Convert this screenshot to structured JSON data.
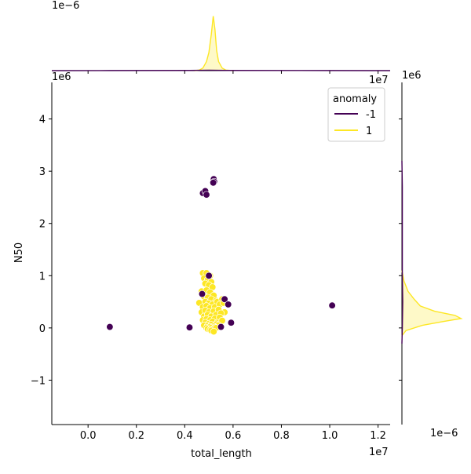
{
  "chart_data": {
    "type": "scatter",
    "subtype": "jointplot",
    "title": "",
    "xlabel": "total_length",
    "ylabel": "N50",
    "x_offset_label": "1e7",
    "y_offset_label": "1e6",
    "xlim": [
      -1.5,
      12.5
    ],
    "ylim": [
      -1.85,
      4.7
    ],
    "x_ticks": [
      0.0,
      0.2,
      0.4,
      0.6,
      0.8,
      1.0,
      1.2
    ],
    "x_tick_labels": [
      "0.0",
      "0.2",
      "0.4",
      "0.6",
      "0.8",
      "1.0",
      "1.2"
    ],
    "y_ticks": [
      -1,
      0,
      1,
      2,
      3,
      4
    ],
    "y_tick_labels": [
      "−1",
      "0",
      "1",
      "2",
      "3",
      "4"
    ],
    "grid": false,
    "legend": {
      "title": "anomaly",
      "placement": "top-right",
      "entries": [
        {
          "label": "-1",
          "color": "#440154"
        },
        {
          "label": "1",
          "color": "#fde725"
        }
      ]
    },
    "series": [
      {
        "name": "-1",
        "color": "#440154",
        "x": [
          0.9,
          4.2,
          4.75,
          4.85,
          4.9,
          5.2,
          5.22,
          5.18,
          5.0,
          4.72,
          5.65,
          5.8,
          5.92,
          5.5,
          10.1
        ],
        "y": [
          0.02,
          0.01,
          2.58,
          2.62,
          2.55,
          2.85,
          2.8,
          2.78,
          1.0,
          0.65,
          0.55,
          0.45,
          0.1,
          0.02,
          0.43
        ]
      },
      {
        "name": "1",
        "color": "#fde725",
        "x": [
          4.75,
          4.9,
          5.05,
          4.8,
          4.95,
          5.1,
          4.85,
          5.0,
          5.15,
          4.7,
          4.9,
          5.05,
          5.2,
          4.8,
          4.95,
          5.1,
          5.3,
          4.6,
          4.85,
          5.0,
          5.15,
          5.35,
          5.55,
          4.75,
          4.9,
          5.05,
          5.25,
          5.45,
          5.6,
          4.7,
          4.85,
          5.0,
          5.2,
          5.4,
          5.65,
          4.8,
          4.95,
          5.1,
          5.3,
          5.5,
          4.75,
          4.9,
          5.05,
          5.25,
          5.45,
          4.85,
          5.0,
          5.15,
          5.35,
          5.55,
          4.8,
          4.95,
          5.1,
          5.3,
          4.9,
          5.05,
          5.2,
          5.4,
          4.95,
          5.1,
          5.25,
          5.05,
          5.2,
          5.1,
          5.3,
          5.2
        ],
        "y": [
          1.05,
          1.05,
          1.0,
          0.95,
          0.92,
          0.88,
          0.85,
          0.82,
          0.78,
          0.7,
          0.72,
          0.68,
          0.62,
          0.6,
          0.58,
          0.55,
          0.52,
          0.48,
          0.5,
          0.47,
          0.45,
          0.5,
          0.55,
          0.4,
          0.42,
          0.38,
          0.4,
          0.45,
          0.48,
          0.3,
          0.33,
          0.3,
          0.32,
          0.35,
          0.3,
          0.22,
          0.25,
          0.22,
          0.25,
          0.28,
          0.15,
          0.17,
          0.15,
          0.18,
          0.2,
          0.1,
          0.08,
          0.12,
          0.1,
          0.14,
          0.05,
          0.04,
          0.06,
          0.07,
          0.0,
          0.02,
          0.03,
          0.05,
          -0.02,
          0.0,
          0.01,
          -0.04,
          -0.02,
          -0.05,
          0.0,
          -0.07
        ]
      }
    ],
    "marginals": {
      "top": {
        "offset_label": "1e−6",
        "description_series": [
          {
            "name": "1",
            "type": "kde",
            "x": [
              4.4,
              4.6,
              4.75,
              4.9,
              5.0,
              5.1,
              5.18,
              5.25,
              5.32,
              5.4,
              5.55,
              5.7,
              6.0
            ],
            "y": [
              0.0,
              0.05,
              0.25,
              0.9,
              1.8,
              3.6,
              5.4,
              4.1,
              2.0,
              0.9,
              0.25,
              0.05,
              0.0
            ]
          },
          {
            "name": "-1",
            "type": "kde",
            "x": [
              -1.5,
              0.9,
              4.2,
              5.0,
              5.8,
              10.1,
              12.5
            ],
            "y": [
              0.0,
              0.01,
              0.02,
              0.04,
              0.02,
              0.01,
              0.0
            ]
          }
        ]
      },
      "right": {
        "offset_label": "1e−6",
        "description_series": [
          {
            "name": "1",
            "type": "kde",
            "y": [
              -0.15,
              -0.05,
              0.05,
              0.12,
              0.18,
              0.24,
              0.32,
              0.42,
              0.55,
              0.7,
              0.9,
              1.1
            ],
            "x": [
              0.0,
              0.1,
              0.5,
              1.0,
              1.45,
              1.3,
              0.8,
              0.45,
              0.3,
              0.15,
              0.05,
              0.0
            ]
          },
          {
            "name": "-1",
            "type": "kde",
            "y": [
              -0.3,
              0.0,
              0.5,
              1.0,
              2.0,
              2.7,
              3.2
            ],
            "x": [
              0.0,
              0.01,
              0.02,
              0.01,
              0.01,
              0.01,
              0.0
            ]
          }
        ]
      }
    }
  }
}
